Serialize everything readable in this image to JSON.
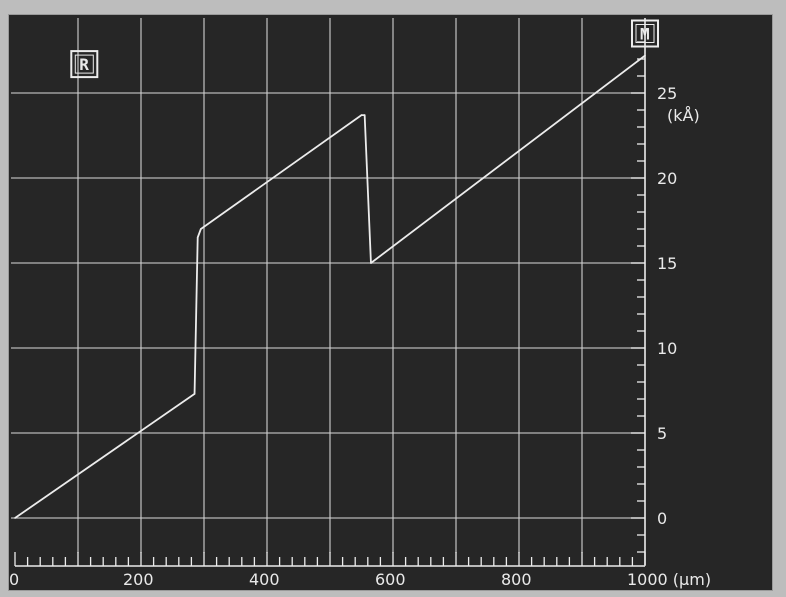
{
  "chart_data": {
    "type": "line",
    "title": "",
    "xlabel": "",
    "ylabel": "",
    "x_unit": "(µm)",
    "y_unit": "(kÅ)",
    "xlim": [
      0,
      1000
    ],
    "ylim": [
      -2.5,
      29
    ],
    "x_ticks": [
      0,
      200,
      400,
      600,
      800,
      1000
    ],
    "x_tick_labels": [
      "0",
      "200",
      "400",
      "600",
      "800",
      "1000 (µm)"
    ],
    "y_ticks": [
      0,
      5,
      10,
      15,
      20,
      25
    ],
    "y_tick_labels": [
      "0",
      "5",
      "10",
      "15",
      "20",
      "25"
    ],
    "grid": true,
    "markers": [
      {
        "label": "R",
        "x": 110,
        "y": 26.7
      },
      {
        "label": "M",
        "x": 1000,
        "y": 28.5
      }
    ],
    "series": [
      {
        "x": [
          0,
          285,
          290,
          295,
          550,
          555,
          565,
          1000
        ],
        "y": [
          0,
          7.3,
          16.5,
          17.0,
          23.7,
          23.7,
          15.0,
          27.2
        ]
      }
    ]
  },
  "colors": {
    "background": "#262626",
    "frame": "#bdbdbd",
    "trace": "#ececec",
    "grid": "#d0d0d0"
  }
}
